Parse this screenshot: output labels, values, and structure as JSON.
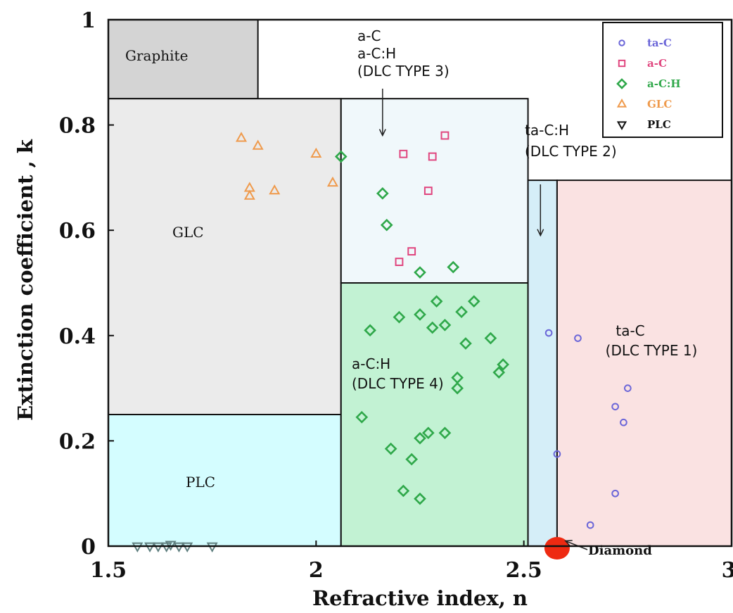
{
  "chart_data": {
    "type": "scatter",
    "xlabel": "Refractive index, n",
    "ylabel": "Extinction coefficient , k",
    "xlim": [
      1.5,
      3.0
    ],
    "ylim": [
      0,
      1.0
    ],
    "x_ticks": [
      {
        "value": 1.5,
        "label": "1.5"
      },
      {
        "value": 2.0,
        "label": "2"
      },
      {
        "value": 2.5,
        "label": "2.5"
      },
      {
        "value": 3.0,
        "label": "3"
      }
    ],
    "y_ticks": [
      {
        "value": 0,
        "label": "0"
      },
      {
        "value": 0.2,
        "label": "0.2"
      },
      {
        "value": 0.4,
        "label": "0.4"
      },
      {
        "value": 0.6,
        "label": "0.6"
      },
      {
        "value": 0.8,
        "label": "0.8"
      },
      {
        "value": 1.0,
        "label": "1"
      }
    ],
    "legend_position": "top-right",
    "grid": false,
    "regions": [
      {
        "name": "Graphite",
        "label": "Graphite",
        "x": [
          1.5,
          1.86
        ],
        "y": [
          0.85,
          1.0
        ],
        "color": "#d4d4d4"
      },
      {
        "name": "GLC",
        "label": "GLC",
        "x": [
          1.5,
          2.06
        ],
        "y": [
          0.25,
          0.85
        ],
        "color": "#ebebeb"
      },
      {
        "name": "PLC",
        "label": "PLC",
        "x": [
          1.5,
          2.06
        ],
        "y": [
          0.0,
          0.25
        ],
        "color": "#d4fdff"
      },
      {
        "name": "a-C / a-C:H (DLC TYPE 3)",
        "label": "",
        "x": [
          2.06,
          2.51
        ],
        "y": [
          0.5,
          0.85
        ],
        "color": "#f0f8fb"
      },
      {
        "name": "a-C:H (DLC TYPE 4)",
        "label": "a-C:H|(DLC TYPE 4)",
        "x": [
          2.06,
          2.51
        ],
        "y": [
          0.0,
          0.5
        ],
        "color": "#c2f2d3"
      },
      {
        "name": "ta-C:H (DLC TYPE 2)",
        "label": "",
        "x": [
          2.51,
          2.58
        ],
        "y": [
          0.0,
          0.695
        ],
        "color": "#d5eef8"
      },
      {
        "name": "ta-C (DLC TYPE 1)",
        "label": "ta-C|(DLC TYPE 1)",
        "x": [
          2.58,
          3.0
        ],
        "y": [
          0.0,
          0.695
        ],
        "color": "#fae2e2"
      }
    ],
    "annotations": [
      {
        "text": "a-C|a-C:H|(DLC TYPE 3)",
        "arrow_to": [
          2.16,
          0.78
        ]
      },
      {
        "text": "ta-C:H|(DLC TYPE 2)",
        "arrow_to": [
          2.54,
          0.59
        ]
      },
      {
        "text": "Diamond",
        "arrow_to": [
          2.6,
          0.01
        ]
      }
    ],
    "highlight": {
      "name": "Diamond",
      "x": 2.58,
      "y": 0.0,
      "color": "#ee2a12"
    },
    "series": [
      {
        "name": "ta-C",
        "marker": "circle",
        "color": "#6b66d8",
        "points": [
          [
            2.56,
            0.405
          ],
          [
            2.63,
            0.395
          ],
          [
            2.72,
            0.265
          ],
          [
            2.74,
            0.235
          ],
          [
            2.75,
            0.3
          ],
          [
            2.58,
            0.175
          ],
          [
            2.72,
            0.1
          ],
          [
            2.66,
            0.04
          ]
        ]
      },
      {
        "name": "a-C",
        "marker": "square",
        "color": "#e0457e",
        "points": [
          [
            2.21,
            0.745
          ],
          [
            2.28,
            0.74
          ],
          [
            2.31,
            0.78
          ],
          [
            2.27,
            0.675
          ],
          [
            2.23,
            0.56
          ],
          [
            2.2,
            0.54
          ]
        ]
      },
      {
        "name": "a-C:H",
        "marker": "diamond",
        "color": "#2fa84a",
        "points": [
          [
            2.06,
            0.74
          ],
          [
            2.16,
            0.67
          ],
          [
            2.17,
            0.61
          ],
          [
            2.25,
            0.52
          ],
          [
            2.33,
            0.53
          ],
          [
            2.13,
            0.41
          ],
          [
            2.2,
            0.435
          ],
          [
            2.25,
            0.44
          ],
          [
            2.29,
            0.465
          ],
          [
            2.31,
            0.42
          ],
          [
            2.28,
            0.415
          ],
          [
            2.35,
            0.445
          ],
          [
            2.38,
            0.465
          ],
          [
            2.36,
            0.385
          ],
          [
            2.42,
            0.395
          ],
          [
            2.45,
            0.345
          ],
          [
            2.44,
            0.33
          ],
          [
            2.34,
            0.32
          ],
          [
            2.34,
            0.3
          ],
          [
            2.11,
            0.245
          ],
          [
            2.18,
            0.185
          ],
          [
            2.25,
            0.205
          ],
          [
            2.27,
            0.215
          ],
          [
            2.31,
            0.215
          ],
          [
            2.23,
            0.165
          ],
          [
            2.21,
            0.105
          ],
          [
            2.25,
            0.09
          ]
        ]
      },
      {
        "name": "GLC",
        "marker": "triangle-up",
        "color": "#ef9a4c",
        "points": [
          [
            1.82,
            0.775
          ],
          [
            1.86,
            0.76
          ],
          [
            2.0,
            0.745
          ],
          [
            1.84,
            0.68
          ],
          [
            1.9,
            0.675
          ],
          [
            1.84,
            0.665
          ],
          [
            2.04,
            0.69
          ]
        ]
      },
      {
        "name": "PLC",
        "marker": "triangle-down",
        "color": "#5f7f7f",
        "points": [
          [
            1.57,
            0.0
          ],
          [
            1.6,
            0.0
          ],
          [
            1.62,
            0.0
          ],
          [
            1.64,
            0.0
          ],
          [
            1.65,
            0.003
          ],
          [
            1.67,
            0.0
          ],
          [
            1.69,
            0.0
          ],
          [
            1.75,
            0.0
          ]
        ]
      }
    ]
  }
}
